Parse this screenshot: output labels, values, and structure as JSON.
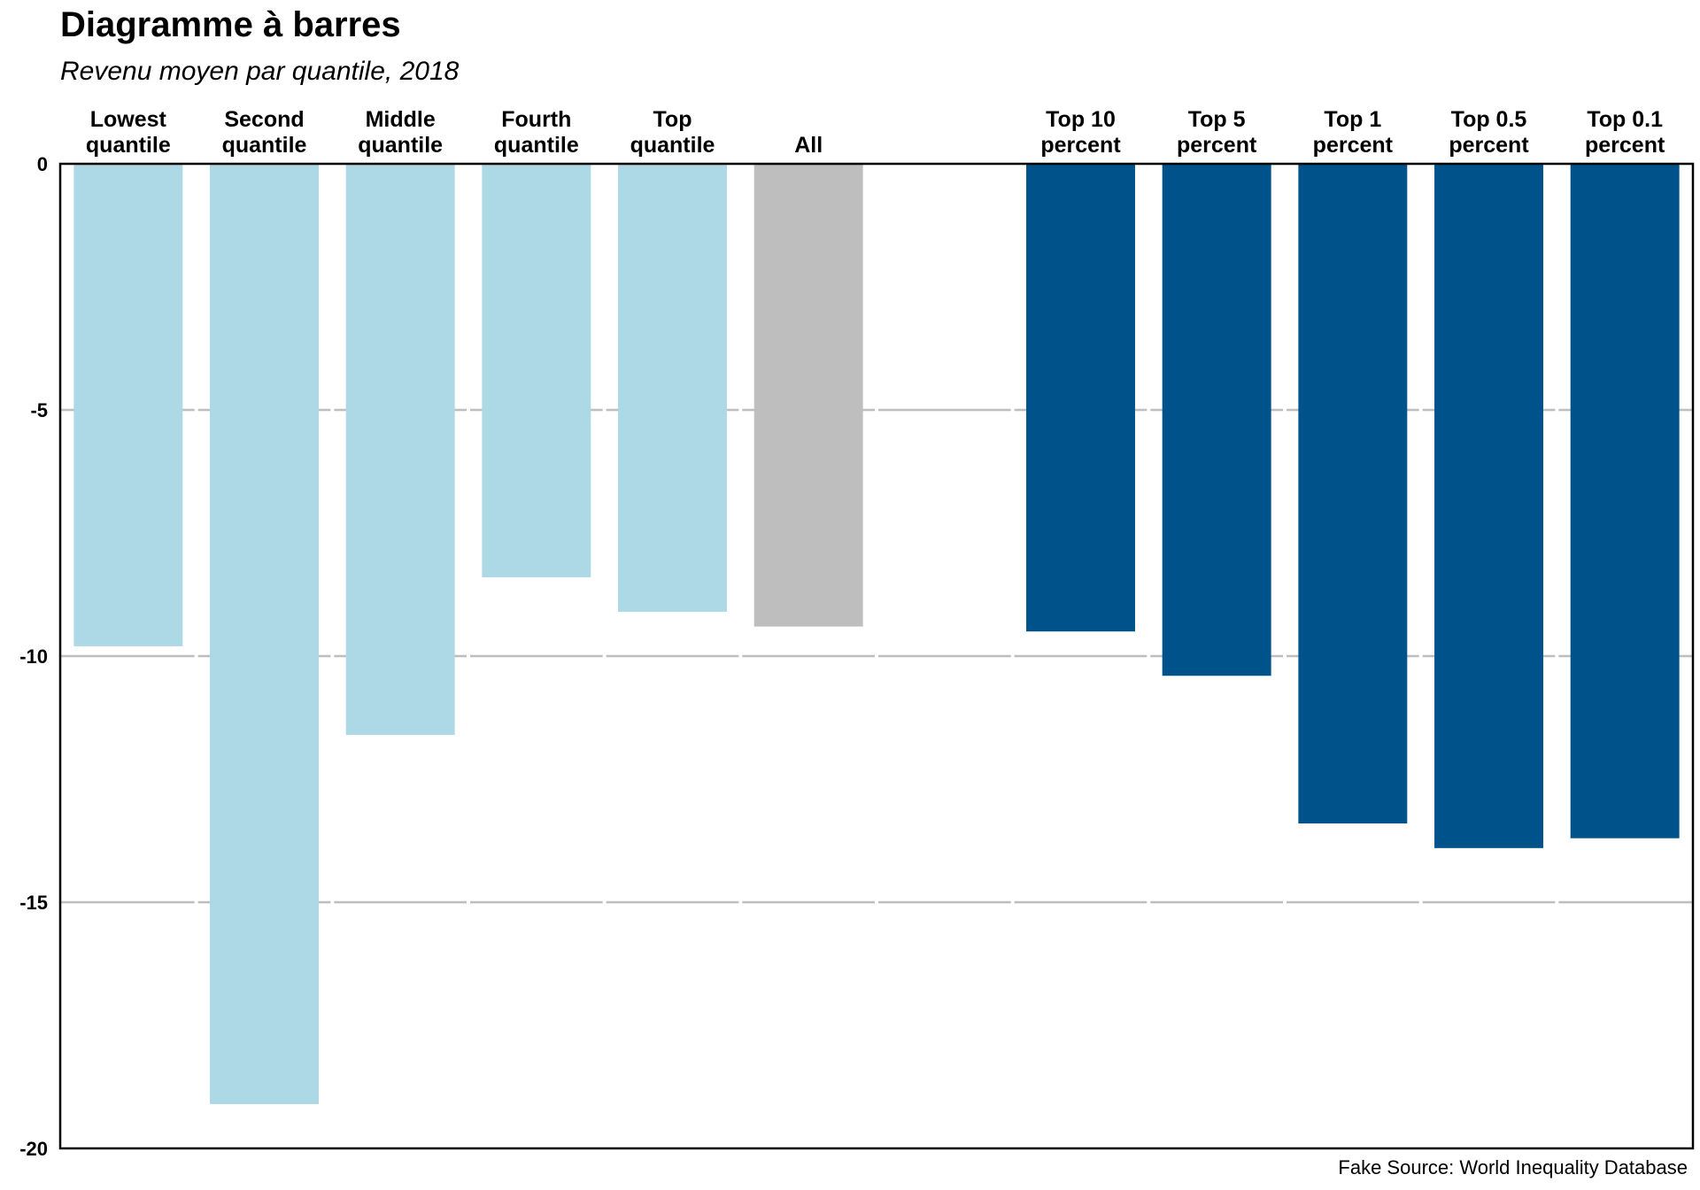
{
  "chart_data": {
    "type": "bar",
    "title": "Diagramme à barres",
    "subtitle": "Revenu moyen par quantile, 2018",
    "source": "Fake Source: World Inequality Database",
    "xlabel": "",
    "ylabel": "",
    "ylim": [
      -20,
      0
    ],
    "yticks": [
      0,
      -5,
      -10,
      -15,
      -20
    ],
    "ytick_labels": [
      "0",
      "-5",
      "-10",
      "-15",
      "-20"
    ],
    "grid": true,
    "legend": "none",
    "category_axis": "top",
    "categories": [
      [
        "Lowest",
        "quantile"
      ],
      [
        "Second",
        "quantile"
      ],
      [
        "Middle",
        "quantile"
      ],
      [
        "Fourth",
        "quantile"
      ],
      [
        "Top",
        "quantile"
      ],
      [
        "All"
      ],
      [],
      [
        "Top 10",
        "percent"
      ],
      [
        "Top 5",
        "percent"
      ],
      [
        "Top 1",
        "percent"
      ],
      [
        "Top 0.5",
        "percent"
      ],
      [
        "Top 0.1",
        "percent"
      ]
    ],
    "values": [
      -9.8,
      -19.1,
      -11.6,
      -8.4,
      -9.1,
      -9.4,
      null,
      -9.5,
      -10.4,
      -13.4,
      -13.9,
      -13.7
    ],
    "bar_colors": [
      "#add8e6",
      "#add8e6",
      "#add8e6",
      "#add8e6",
      "#add8e6",
      "#bebebe",
      null,
      "#00538a",
      "#00538a",
      "#00538a",
      "#00538a",
      "#00538a"
    ],
    "gridline_color": "#bebebe",
    "axis_color": "#000000"
  }
}
